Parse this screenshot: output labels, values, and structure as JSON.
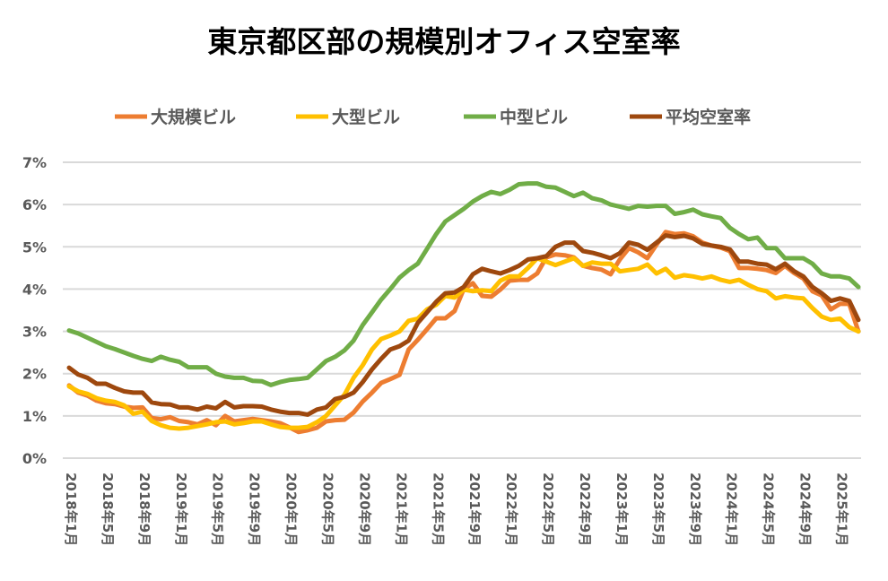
{
  "chart_data": {
    "type": "line",
    "title": "東京都区部の規模別オフィス空室率",
    "xlabel": "",
    "ylabel": "",
    "ylim": [
      0,
      7
    ],
    "yticks": [
      "0%",
      "1%",
      "2%",
      "3%",
      "4%",
      "5%",
      "6%",
      "7%"
    ],
    "grid": true,
    "legend_position": "top",
    "x_start": "2018-01",
    "x_end": "2025-03",
    "xtick_labels": [
      "2018年1月",
      "2018年5月",
      "2018年9月",
      "2019年1月",
      "2019年5月",
      "2019年9月",
      "2020年1月",
      "2020年5月",
      "2020年9月",
      "2021年1月",
      "2021年5月",
      "2021年9月",
      "2022年1月",
      "2022年5月",
      "2022年9月",
      "2023年1月",
      "2023年5月",
      "2023年9月",
      "2024年1月",
      "2024年5月",
      "2024年9月",
      "2025年1月"
    ],
    "series": [
      {
        "name": "大規模ビル",
        "color": "#ED7D31",
        "values": [
          1.72,
          1.55,
          1.48,
          1.36,
          1.3,
          1.28,
          1.22,
          1.19,
          1.2,
          0.95,
          0.92,
          0.97,
          0.88,
          0.85,
          0.8,
          0.9,
          0.78,
          1.0,
          0.87,
          0.9,
          0.93,
          0.9,
          0.87,
          0.83,
          0.73,
          0.62,
          0.66,
          0.72,
          0.87,
          0.9,
          0.91,
          1.08,
          1.34,
          1.55,
          1.78,
          1.87,
          1.97,
          2.57,
          2.8,
          3.05,
          3.31,
          3.31,
          3.48,
          4.0,
          4.14,
          3.84,
          3.82,
          3.99,
          4.2,
          4.22,
          4.22,
          4.37,
          4.75,
          4.82,
          4.8,
          4.75,
          4.55,
          4.5,
          4.46,
          4.35,
          4.7,
          4.97,
          4.87,
          4.73,
          5.05,
          5.35,
          5.3,
          5.32,
          5.25,
          5.1,
          5.03,
          4.98,
          4.9,
          4.5,
          4.5,
          4.48,
          4.45,
          4.38,
          4.55,
          4.38,
          4.25,
          3.95,
          3.85,
          3.52,
          3.65,
          3.65,
          3.0
        ]
      },
      {
        "name": "大型ビル",
        "color": "#FFC000",
        "values": [
          1.7,
          1.58,
          1.52,
          1.42,
          1.36,
          1.33,
          1.25,
          1.05,
          1.1,
          0.88,
          0.78,
          0.72,
          0.7,
          0.72,
          0.76,
          0.8,
          0.85,
          0.87,
          0.8,
          0.83,
          0.87,
          0.87,
          0.8,
          0.74,
          0.72,
          0.72,
          0.74,
          0.85,
          1.0,
          1.25,
          1.5,
          1.9,
          2.2,
          2.57,
          2.82,
          2.9,
          3.0,
          3.25,
          3.3,
          3.52,
          3.63,
          3.84,
          3.8,
          3.99,
          3.95,
          3.97,
          3.95,
          4.2,
          4.3,
          4.3,
          4.5,
          4.73,
          4.65,
          4.57,
          4.65,
          4.73,
          4.55,
          4.63,
          4.6,
          4.6,
          4.42,
          4.45,
          4.48,
          4.58,
          4.37,
          4.48,
          4.27,
          4.33,
          4.3,
          4.25,
          4.3,
          4.22,
          4.17,
          4.22,
          4.1,
          4.0,
          3.95,
          3.78,
          3.83,
          3.8,
          3.78,
          3.55,
          3.35,
          3.27,
          3.3,
          3.1,
          3.0
        ]
      },
      {
        "name": "中型ビル",
        "color": "#70AD47",
        "values": [
          3.02,
          2.95,
          2.85,
          2.75,
          2.65,
          2.58,
          2.5,
          2.42,
          2.35,
          2.3,
          2.4,
          2.33,
          2.28,
          2.15,
          2.15,
          2.15,
          2.0,
          1.93,
          1.9,
          1.9,
          1.83,
          1.82,
          1.73,
          1.8,
          1.85,
          1.87,
          1.9,
          2.1,
          2.3,
          2.4,
          2.55,
          2.78,
          3.15,
          3.45,
          3.75,
          4.0,
          4.27,
          4.45,
          4.6,
          4.95,
          5.3,
          5.6,
          5.75,
          5.9,
          6.07,
          6.2,
          6.3,
          6.25,
          6.35,
          6.48,
          6.5,
          6.5,
          6.42,
          6.4,
          6.3,
          6.2,
          6.28,
          6.15,
          6.1,
          6.0,
          5.95,
          5.9,
          5.97,
          5.95,
          5.97,
          5.97,
          5.78,
          5.82,
          5.88,
          5.77,
          5.72,
          5.68,
          5.45,
          5.3,
          5.18,
          5.22,
          4.97,
          4.97,
          4.73,
          4.73,
          4.73,
          4.6,
          4.37,
          4.3,
          4.3,
          4.25,
          4.05
        ]
      },
      {
        "name": "平均空室率",
        "color": "#9E480E",
        "values": [
          2.14,
          1.98,
          1.9,
          1.76,
          1.76,
          1.66,
          1.58,
          1.55,
          1.55,
          1.32,
          1.28,
          1.27,
          1.2,
          1.2,
          1.15,
          1.22,
          1.18,
          1.33,
          1.2,
          1.23,
          1.23,
          1.22,
          1.15,
          1.1,
          1.07,
          1.07,
          1.03,
          1.15,
          1.2,
          1.4,
          1.45,
          1.55,
          1.8,
          2.1,
          2.35,
          2.57,
          2.65,
          2.78,
          3.2,
          3.45,
          3.7,
          3.9,
          3.92,
          4.05,
          4.35,
          4.48,
          4.42,
          4.37,
          4.45,
          4.55,
          4.7,
          4.73,
          4.78,
          5.0,
          5.1,
          5.1,
          4.9,
          4.86,
          4.8,
          4.73,
          4.85,
          5.1,
          5.05,
          4.93,
          5.1,
          5.27,
          5.23,
          5.26,
          5.2,
          5.07,
          5.03,
          5.0,
          4.94,
          4.65,
          4.65,
          4.6,
          4.58,
          4.47,
          4.6,
          4.42,
          4.3,
          4.05,
          3.9,
          3.72,
          3.78,
          3.72,
          3.27
        ]
      }
    ]
  }
}
